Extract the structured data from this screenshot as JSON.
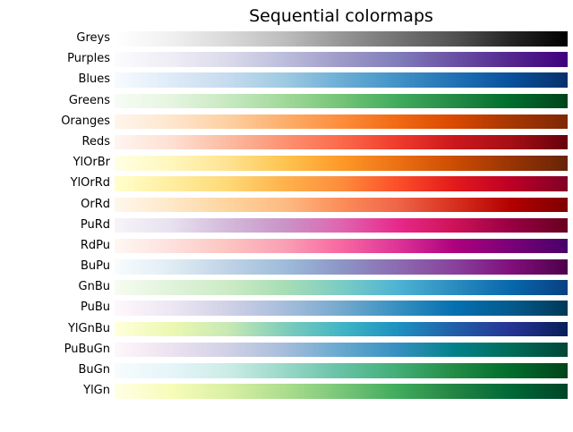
{
  "title": "Sequential colormaps",
  "chart_data": {
    "type": "table",
    "title": "Sequential colormaps",
    "orientation": "horizontal gradient bars, light (left) to dark (right)",
    "gradient_positions": [
      0,
      0.125,
      0.25,
      0.375,
      0.5,
      0.625,
      0.75,
      0.875,
      1.0
    ],
    "colormaps": [
      {
        "name": "Greys",
        "colors": [
          "#ffffff",
          "#f0f0f0",
          "#d9d9d9",
          "#bdbdbd",
          "#969696",
          "#737373",
          "#525252",
          "#252525",
          "#000000"
        ]
      },
      {
        "name": "Purples",
        "colors": [
          "#fcfbfd",
          "#efedf5",
          "#dadaeb",
          "#bcbddc",
          "#9e9ac8",
          "#807dba",
          "#6a51a3",
          "#54278f",
          "#3f007d"
        ]
      },
      {
        "name": "Blues",
        "colors": [
          "#f7fbff",
          "#deebf7",
          "#c6dbef",
          "#9ecae1",
          "#6baed6",
          "#4292c6",
          "#2171b5",
          "#08519c",
          "#08306b"
        ]
      },
      {
        "name": "Greens",
        "colors": [
          "#f7fcf5",
          "#e5f5e0",
          "#c7e9c0",
          "#a1d99b",
          "#74c476",
          "#41ab5d",
          "#238b45",
          "#006d2c",
          "#00441b"
        ]
      },
      {
        "name": "Oranges",
        "colors": [
          "#fff5eb",
          "#fee6ce",
          "#fdd0a2",
          "#fdae6b",
          "#fd8d3c",
          "#f16913",
          "#d94801",
          "#a63603",
          "#7f2704"
        ]
      },
      {
        "name": "Reds",
        "colors": [
          "#fff5f0",
          "#fee0d2",
          "#fcbba1",
          "#fc9272",
          "#fb6a4a",
          "#ef3b2c",
          "#cb181d",
          "#a50f15",
          "#67000d"
        ]
      },
      {
        "name": "YlOrBr",
        "colors": [
          "#ffffe5",
          "#fff7bc",
          "#fee391",
          "#fec44f",
          "#fe9929",
          "#ec7014",
          "#cc4c02",
          "#993404",
          "#662506"
        ]
      },
      {
        "name": "YlOrRd",
        "colors": [
          "#ffffcc",
          "#ffeda0",
          "#fed976",
          "#feb24c",
          "#fd8d3c",
          "#fc4e2a",
          "#e31a1c",
          "#bd0026",
          "#800026"
        ]
      },
      {
        "name": "OrRd",
        "colors": [
          "#fff7ec",
          "#fee8c8",
          "#fdd49e",
          "#fdbb84",
          "#fc8d59",
          "#ef6548",
          "#d7301f",
          "#b30000",
          "#7f0000"
        ]
      },
      {
        "name": "PuRd",
        "colors": [
          "#f7f4f9",
          "#e7e1ef",
          "#d4b9da",
          "#c994c7",
          "#df65b0",
          "#e7298a",
          "#ce1256",
          "#980043",
          "#67001f"
        ]
      },
      {
        "name": "RdPu",
        "colors": [
          "#fff7f3",
          "#fde0dd",
          "#fcc5c0",
          "#fa9fb5",
          "#f768a1",
          "#dd3497",
          "#ae017e",
          "#7a0177",
          "#49006a"
        ]
      },
      {
        "name": "BuPu",
        "colors": [
          "#f7fcfd",
          "#e0ecf4",
          "#bfd3e6",
          "#9ebcda",
          "#8c96c6",
          "#8c6bb1",
          "#88419d",
          "#810f7c",
          "#4d004b"
        ]
      },
      {
        "name": "GnBu",
        "colors": [
          "#f7fcf0",
          "#e0f3db",
          "#ccebc5",
          "#a8ddb5",
          "#7bccc4",
          "#4eb3d3",
          "#2b8cbe",
          "#0868ac",
          "#084081"
        ]
      },
      {
        "name": "PuBu",
        "colors": [
          "#fff7fb",
          "#ece7f2",
          "#d0d1e6",
          "#a6bddb",
          "#74a9cf",
          "#3690c0",
          "#0570b0",
          "#045a8d",
          "#023858"
        ]
      },
      {
        "name": "YlGnBu",
        "colors": [
          "#ffffd9",
          "#edf8b1",
          "#c7e9b4",
          "#7fcdbb",
          "#41b6c4",
          "#1d91c0",
          "#225ea8",
          "#253494",
          "#081d58"
        ]
      },
      {
        "name": "PuBuGn",
        "colors": [
          "#fff7fb",
          "#ece2f0",
          "#d0d1e6",
          "#a6bddb",
          "#67a9cf",
          "#3690c0",
          "#02818a",
          "#016c59",
          "#014636"
        ]
      },
      {
        "name": "BuGn",
        "colors": [
          "#f7fcfd",
          "#e5f5f9",
          "#ccece6",
          "#99d8c9",
          "#66c2a4",
          "#41ae76",
          "#238b45",
          "#006d2c",
          "#00441b"
        ]
      },
      {
        "name": "YlGn",
        "colors": [
          "#ffffe5",
          "#f7fcb9",
          "#d9f0a3",
          "#addd8e",
          "#78c679",
          "#41ab5d",
          "#238443",
          "#006837",
          "#004529"
        ]
      }
    ],
    "background_color": "#ffffff",
    "text_color": "#000000"
  }
}
